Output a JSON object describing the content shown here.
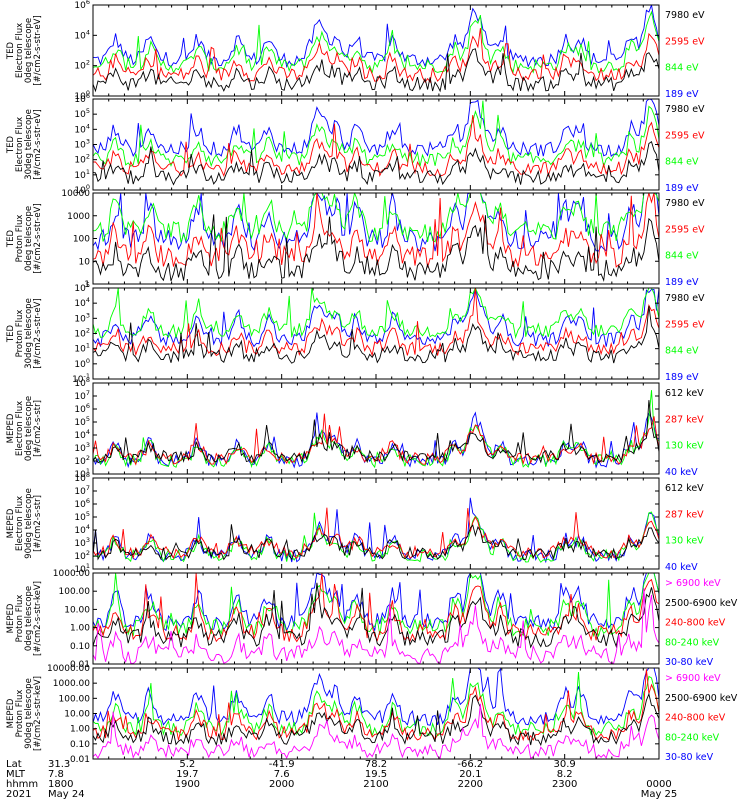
{
  "bottom_axis": {
    "row_labels": [
      "Lat",
      "MLT",
      "hhmm",
      "2021"
    ],
    "columns": [
      {
        "lat": "31.3",
        "mlt": "7.8",
        "hhmm": "1800",
        "date": "May 24"
      },
      {
        "lat": "5.2",
        "mlt": "19.7",
        "hhmm": "1900",
        "date": ""
      },
      {
        "lat": "-41.9",
        "mlt": "7.6",
        "hhmm": "2000",
        "date": ""
      },
      {
        "lat": "78.2",
        "mlt": "19.5",
        "hhmm": "2100",
        "date": ""
      },
      {
        "lat": "-66.2",
        "mlt": "20.1",
        "hhmm": "2200",
        "date": ""
      },
      {
        "lat": "30.9",
        "mlt": "8.2",
        "hhmm": "2300",
        "date": ""
      },
      {
        "lat": "",
        "mlt": "",
        "hhmm": "0000",
        "date": "May 25"
      }
    ]
  },
  "colors": {
    "black": "#000000",
    "red": "#ff0000",
    "green": "#00ff00",
    "blue": "#0000ff",
    "magenta": "#ff00ff"
  },
  "chart_data": [
    {
      "type": "line",
      "ylabel": [
        "TED",
        "Electron Flux",
        "0deg telescope",
        "[#/cm2-s-str-eV]"
      ],
      "yscale": "log",
      "ylim_exp": [
        0,
        6
      ],
      "ytick_labels": [
        "10^0",
        "10^2",
        "10^4",
        "10^6"
      ],
      "legend": [
        {
          "label": "7980 eV",
          "color": "#000000"
        },
        {
          "label": "2595 eV",
          "color": "#ff0000"
        },
        {
          "label": "844 eV",
          "color": "#00ff00"
        },
        {
          "label": "189 eV",
          "color": "#0000ff"
        }
      ],
      "series_levels_exp": [
        0.8,
        1.4,
        2.0,
        2.4
      ]
    },
    {
      "type": "line",
      "ylabel": [
        "TED",
        "Electron Flux",
        "30deg telescope",
        "[#/cm2-s-str-eV]"
      ],
      "yscale": "log",
      "ylim_exp": [
        0,
        6
      ],
      "ytick_labels": [
        "10^0",
        "10^1",
        "10^2",
        "10^3",
        "10^4",
        "10^5",
        "10^6"
      ],
      "legend": [
        {
          "label": "7980 eV",
          "color": "#000000"
        },
        {
          "label": "2595 eV",
          "color": "#ff0000"
        },
        {
          "label": "844 eV",
          "color": "#00ff00"
        },
        {
          "label": "189 eV",
          "color": "#0000ff"
        }
      ],
      "series_levels_exp": [
        0.8,
        1.4,
        2.0,
        2.7
      ]
    },
    {
      "type": "line",
      "ylabel": [
        "TED",
        "Proton Flux",
        "0deg telescope",
        "[#/cm2-s-str-eV]"
      ],
      "yscale": "log",
      "ylim_exp": [
        0,
        4
      ],
      "ytick_labels": [
        "1",
        "10",
        "100",
        "1000",
        "10000"
      ],
      "legend": [
        {
          "label": "7980 eV",
          "color": "#000000"
        },
        {
          "label": "2595 eV",
          "color": "#ff0000"
        },
        {
          "label": "844 eV",
          "color": "#00ff00"
        },
        {
          "label": "189 eV",
          "color": "#0000ff"
        }
      ],
      "series_levels_exp": [
        0.6,
        1.2,
        2.3,
        1.9
      ]
    },
    {
      "type": "line",
      "ylabel": [
        "TED",
        "Proton Flux",
        "30deg telescope",
        "[#/cm2-s-str-eV]"
      ],
      "yscale": "log",
      "ylim_exp": [
        -1,
        5
      ],
      "ytick_labels": [
        "10^-1",
        "10^0",
        "10^1",
        "10^2",
        "10^3",
        "10^4",
        "10^5"
      ],
      "legend": [
        {
          "label": "7980 eV",
          "color": "#000000"
        },
        {
          "label": "2595 eV",
          "color": "#ff0000"
        },
        {
          "label": "844 eV",
          "color": "#00ff00"
        },
        {
          "label": "189 eV",
          "color": "#0000ff"
        }
      ],
      "series_levels_exp": [
        0.5,
        1.0,
        2.2,
        1.6
      ]
    },
    {
      "type": "line",
      "ylabel": [
        "MEPED",
        "Electron Flux",
        "0deg telescope",
        "[#/cm2-s-str]"
      ],
      "yscale": "log",
      "ylim_exp": [
        1,
        8
      ],
      "ytick_labels": [
        "10^1",
        "10^2",
        "10^3",
        "10^4",
        "10^5",
        "10^6",
        "10^7",
        "10^8"
      ],
      "legend": [
        {
          "label": "612 keV",
          "color": "#000000"
        },
        {
          "label": "287 keV",
          "color": "#ff0000"
        },
        {
          "label": "130 keV",
          "color": "#00ff00"
        },
        {
          "label": "40 keV",
          "color": "#0000ff"
        }
      ],
      "series_levels_exp": [
        2.3,
        2.2,
        2.0,
        2.0
      ]
    },
    {
      "type": "line",
      "ylabel": [
        "MEPED",
        "Electron Flux",
        "90deg telescope",
        "[#/cm2-s-str]"
      ],
      "yscale": "log",
      "ylim_exp": [
        1,
        8
      ],
      "ytick_labels": [
        "10^1",
        "10^2",
        "10^3",
        "10^4",
        "10^5",
        "10^6",
        "10^7",
        "10^8"
      ],
      "legend": [
        {
          "label": "612 keV",
          "color": "#000000"
        },
        {
          "label": "287 keV",
          "color": "#ff0000"
        },
        {
          "label": "130 keV",
          "color": "#00ff00"
        },
        {
          "label": "40 keV",
          "color": "#0000ff"
        }
      ],
      "series_levels_exp": [
        2.2,
        2.3,
        2.0,
        2.0
      ]
    },
    {
      "type": "line",
      "ylabel": [
        "MEPED",
        "Proton Flux",
        "0deg telescope",
        "[#/cm2-s-str-keV]"
      ],
      "yscale": "log",
      "ylim_exp": [
        -2,
        3
      ],
      "ytick_labels": [
        "0.01",
        "0.10",
        "1.00",
        "10.00",
        "100.00",
        "1000.00"
      ],
      "legend": [
        {
          "label": "> 6900 keV",
          "color": "#ff00ff"
        },
        {
          "label": "2500-6900 keV",
          "color": "#000000"
        },
        {
          "label": "240-800 keV",
          "color": "#ff0000"
        },
        {
          "label": "80-240 keV",
          "color": "#00ff00"
        },
        {
          "label": "30-80 keV",
          "color": "#0000ff"
        }
      ],
      "series_levels_exp": [
        -1.5,
        -0.6,
        -0.3,
        0.0,
        0.3
      ]
    },
    {
      "type": "line",
      "ylabel": [
        "MEPED",
        "Proton Flux",
        "90deg telescope",
        "[#/cm2-s-str-keV]"
      ],
      "yscale": "log",
      "ylim_exp": [
        -2,
        4
      ],
      "ytick_labels": [
        "0.01",
        "0.10",
        "1.00",
        "10.00",
        "100.00",
        "1000.00",
        "10000.00"
      ],
      "legend": [
        {
          "label": "> 6900 keV",
          "color": "#ff00ff"
        },
        {
          "label": "2500-6900 keV",
          "color": "#000000"
        },
        {
          "label": "240-800 keV",
          "color": "#ff0000"
        },
        {
          "label": "80-240 keV",
          "color": "#00ff00"
        },
        {
          "label": "30-80 keV",
          "color": "#0000ff"
        }
      ],
      "series_levels_exp": [
        -1.5,
        -0.6,
        -0.3,
        0.0,
        0.7
      ]
    }
  ]
}
